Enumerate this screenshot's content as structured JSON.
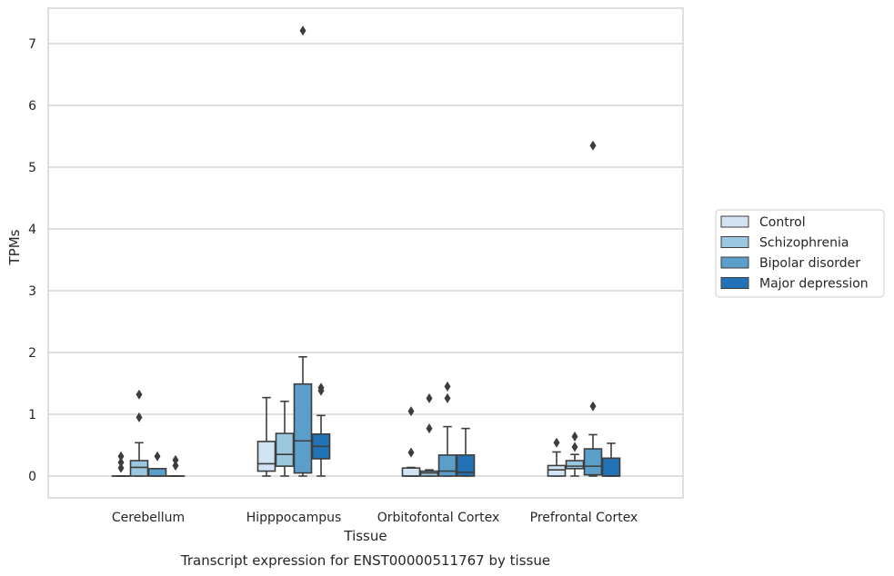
{
  "caption": "Transcript expression for ENST00000511767 by tissue",
  "chart_data": {
    "type": "box",
    "title": "",
    "xlabel": "Tissue",
    "ylabel": "TPMs",
    "ylim": [
      -0.35,
      7.55
    ],
    "yticks": [
      0,
      1,
      2,
      3,
      4,
      5,
      6,
      7
    ],
    "grid": "horizontal",
    "legend_position": "right",
    "categories": [
      "Cerebellum",
      "Hipppocampus",
      "Orbitofontal Cortex",
      "Prefrontal Cortex"
    ],
    "series": [
      {
        "name": "Control",
        "color": "#d2e3f3",
        "boxes": [
          {
            "q1": 0.0,
            "median": 0.0,
            "q3": 0.0,
            "whisker_low": 0.0,
            "whisker_high": 0.0,
            "outliers": [
              0.13,
              0.22,
              0.32
            ]
          },
          {
            "q1": 0.08,
            "median": 0.2,
            "q3": 0.56,
            "whisker_low": 0.0,
            "whisker_high": 1.27,
            "outliers": []
          },
          {
            "q1": 0.0,
            "median": 0.0,
            "q3": 0.13,
            "whisker_low": 0.0,
            "whisker_high": 0.14,
            "outliers": [
              0.38,
              1.05
            ]
          },
          {
            "q1": 0.0,
            "median": 0.1,
            "q3": 0.17,
            "whisker_low": 0.0,
            "whisker_high": 0.39,
            "outliers": [
              0.54
            ]
          }
        ]
      },
      {
        "name": "Schizophrenia",
        "color": "#9ac8e0",
        "boxes": [
          {
            "q1": 0.0,
            "median": 0.14,
            "q3": 0.25,
            "whisker_low": 0.0,
            "whisker_high": 0.54,
            "outliers": [
              0.95,
              1.32
            ]
          },
          {
            "q1": 0.16,
            "median": 0.35,
            "q3": 0.69,
            "whisker_low": 0.0,
            "whisker_high": 1.21,
            "outliers": []
          },
          {
            "q1": 0.0,
            "median": 0.05,
            "q3": 0.08,
            "whisker_low": 0.0,
            "whisker_high": 0.1,
            "outliers": [
              0.77,
              1.26
            ]
          },
          {
            "q1": 0.12,
            "median": 0.16,
            "q3": 0.25,
            "whisker_low": 0.0,
            "whisker_high": 0.35,
            "outliers": [
              0.47,
              0.64
            ]
          }
        ]
      },
      {
        "name": "Bipolar disorder",
        "color": "#5a9ec9",
        "boxes": [
          {
            "q1": 0.0,
            "median": 0.0,
            "q3": 0.12,
            "whisker_low": 0.0,
            "whisker_high": 0.12,
            "outliers": [
              0.32
            ]
          },
          {
            "q1": 0.05,
            "median": 0.57,
            "q3": 1.49,
            "whisker_low": 0.0,
            "whisker_high": 1.93,
            "outliers": [
              7.21
            ]
          },
          {
            "q1": 0.0,
            "median": 0.08,
            "q3": 0.34,
            "whisker_low": 0.0,
            "whisker_high": 0.8,
            "outliers": [
              1.26,
              1.45
            ]
          },
          {
            "q1": 0.02,
            "median": 0.16,
            "q3": 0.44,
            "whisker_low": 0.0,
            "whisker_high": 0.67,
            "outliers": [
              1.13,
              5.35
            ]
          }
        ]
      },
      {
        "name": "Major depression",
        "color": "#2372b5",
        "boxes": [
          {
            "q1": 0.0,
            "median": 0.0,
            "q3": 0.0,
            "whisker_low": 0.0,
            "whisker_high": 0.0,
            "outliers": [
              0.17,
              0.26
            ]
          },
          {
            "q1": 0.28,
            "median": 0.48,
            "q3": 0.68,
            "whisker_low": 0.0,
            "whisker_high": 0.98,
            "outliers": [
              1.38,
              1.43
            ]
          },
          {
            "q1": 0.0,
            "median": 0.06,
            "q3": 0.34,
            "whisker_low": 0.0,
            "whisker_high": 0.77,
            "outliers": []
          },
          {
            "q1": 0.0,
            "median": 0.0,
            "q3": 0.29,
            "whisker_low": 0.0,
            "whisker_high": 0.53,
            "outliers": []
          }
        ]
      }
    ]
  }
}
